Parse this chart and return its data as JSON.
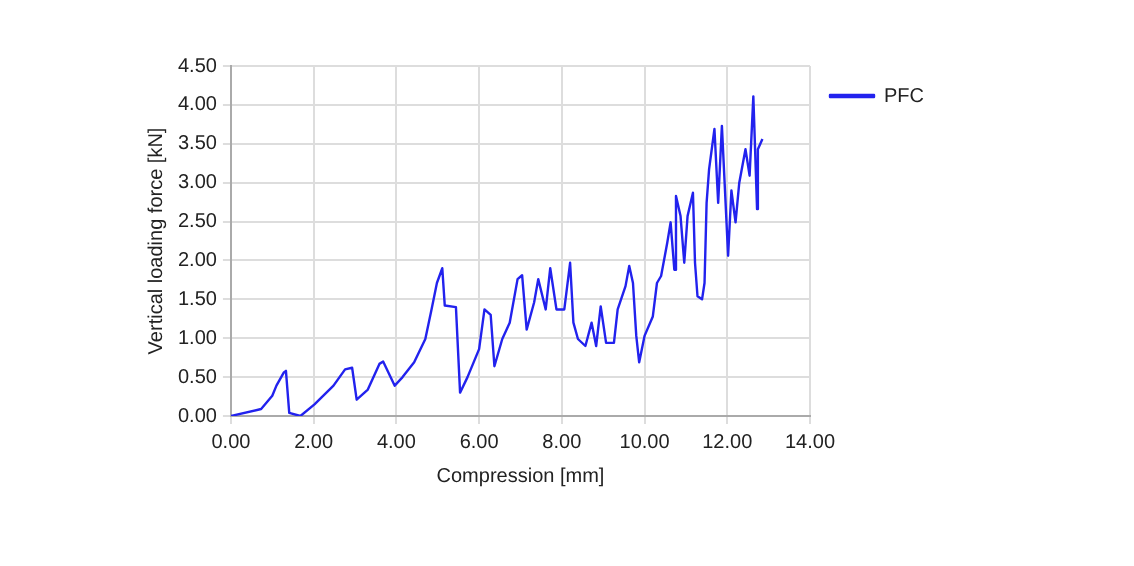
{
  "chart_data": {
    "type": "line",
    "xlabel": "Compression [mm]",
    "ylabel": "Vertical loading force [kN]",
    "xlim": [
      0,
      14
    ],
    "xticks": [
      {
        "value": 0,
        "label": "0.00"
      },
      {
        "value": 2,
        "label": "2.00"
      },
      {
        "value": 4,
        "label": "4.00"
      },
      {
        "value": 6,
        "label": "6.00"
      },
      {
        "value": 8,
        "label": "8.00"
      },
      {
        "value": 10,
        "label": "10.00"
      },
      {
        "value": 12,
        "label": "12.00"
      },
      {
        "value": 14,
        "label": "14.00"
      }
    ],
    "ylim": [
      0,
      4.5
    ],
    "yticks": [
      {
        "value": 0,
        "label": "0.00"
      },
      {
        "value": 0.5,
        "label": "0.50"
      },
      {
        "value": 1,
        "label": "1.00"
      },
      {
        "value": 1.5,
        "label": "1.50"
      },
      {
        "value": 2,
        "label": "2.00"
      },
      {
        "value": 2.5,
        "label": "2.50"
      },
      {
        "value": 3,
        "label": "3.00"
      },
      {
        "value": 3.5,
        "label": "3.50"
      },
      {
        "value": 4,
        "label": "4.00"
      },
      {
        "value": 4.5,
        "label": "4.50"
      }
    ],
    "grid": true,
    "legend": "top right",
    "marker": "none",
    "line_style": "solid",
    "series": [
      {
        "name": "PFC",
        "color": "#2222ee",
        "x": [
          0,
          0.73,
          1.0,
          1.1,
          1.28,
          1.33,
          1.41,
          1.68,
          2.02,
          2.48,
          2.76,
          2.93,
          3.04,
          3.31,
          3.59,
          3.68,
          3.96,
          4.15,
          4.43,
          4.7,
          4.85,
          4.98,
          5.11,
          5.17,
          5.44,
          5.54,
          5.72,
          6.0,
          6.13,
          6.28,
          6.37,
          6.56,
          6.74,
          6.93,
          7.04,
          7.15,
          7.33,
          7.43,
          7.61,
          7.72,
          7.87,
          8.06,
          8.2,
          8.28,
          8.39,
          8.57,
          8.72,
          8.83,
          8.94,
          9.07,
          9.26,
          9.35,
          9.54,
          9.63,
          9.72,
          9.8,
          9.87,
          10.0,
          10.2,
          10.3,
          10.4,
          10.55,
          10.63,
          10.72,
          10.76,
          10.87,
          10.96,
          11.04,
          11.17,
          11.22,
          11.28,
          11.39,
          11.45,
          11.5,
          11.56,
          11.69,
          11.78,
          11.87,
          12.02,
          12.1,
          12.2,
          12.29,
          12.44,
          12.54,
          12.63,
          12.72,
          12.74,
          12.85
        ],
        "values": [
          0,
          0.09,
          0.26,
          0.39,
          0.56,
          0.58,
          0.04,
          0,
          0.15,
          0.39,
          0.6,
          0.62,
          0.21,
          0.34,
          0.67,
          0.7,
          0.39,
          0.5,
          0.69,
          0.99,
          1.37,
          1.71,
          1.9,
          1.42,
          1.4,
          0.3,
          0.5,
          0.86,
          1.37,
          1.3,
          0.64,
          0.99,
          1.2,
          1.76,
          1.81,
          1.11,
          1.46,
          1.76,
          1.37,
          1.9,
          1.37,
          1.37,
          1.97,
          1.2,
          0.99,
          0.9,
          1.2,
          0.9,
          1.41,
          0.94,
          0.94,
          1.37,
          1.67,
          1.93,
          1.71,
          1.03,
          0.69,
          1.03,
          1.28,
          1.71,
          1.8,
          2.23,
          2.49,
          1.88,
          2.83,
          2.57,
          1.97,
          2.57,
          2.87,
          1.97,
          1.54,
          1.5,
          1.71,
          2.74,
          3.17,
          3.69,
          2.74,
          3.73,
          2.06,
          2.9,
          2.49,
          3.0,
          3.43,
          3.09,
          4.11,
          2.66,
          3.43,
          3.56
        ]
      }
    ]
  }
}
